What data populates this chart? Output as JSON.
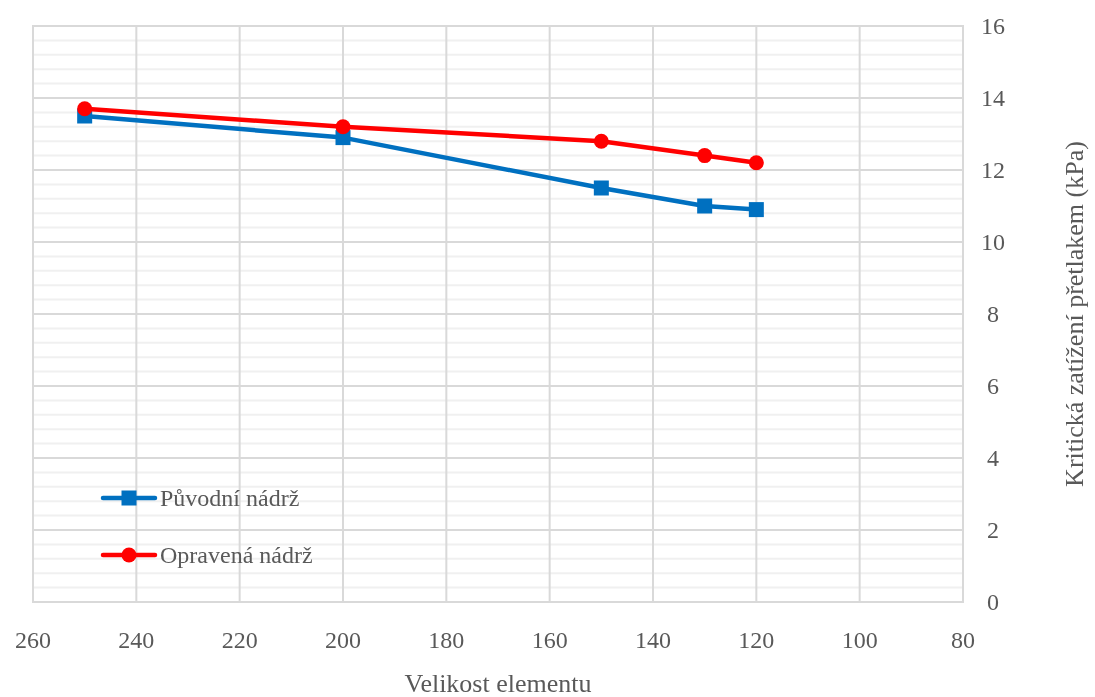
{
  "chart_data": {
    "type": "line",
    "xlabel": "Velikost elementu",
    "ylabel": "Kritická zatížení přetlakem (kPa)",
    "xlim": [
      260,
      80
    ],
    "xticks": [
      260,
      240,
      220,
      200,
      180,
      160,
      140,
      120,
      100,
      80
    ],
    "ylim": [
      0,
      16
    ],
    "yticks": [
      0,
      2,
      4,
      6,
      8,
      10,
      12,
      14,
      16
    ],
    "grid": true,
    "legend": "bottom left",
    "line_style": "solid",
    "series": [
      {
        "name": "Původní nádrž",
        "color": "#0070c0",
        "marker": "square",
        "x": [
          250,
          200,
          150,
          130,
          120
        ],
        "values": [
          13.5,
          12.9,
          11.5,
          11.0,
          10.9
        ]
      },
      {
        "name": "Opravená nádrž",
        "color": "#ff0000",
        "marker": "circle",
        "x": [
          250,
          200,
          150,
          130,
          120
        ],
        "values": [
          13.7,
          13.2,
          12.8,
          12.4,
          12.2
        ]
      }
    ]
  }
}
